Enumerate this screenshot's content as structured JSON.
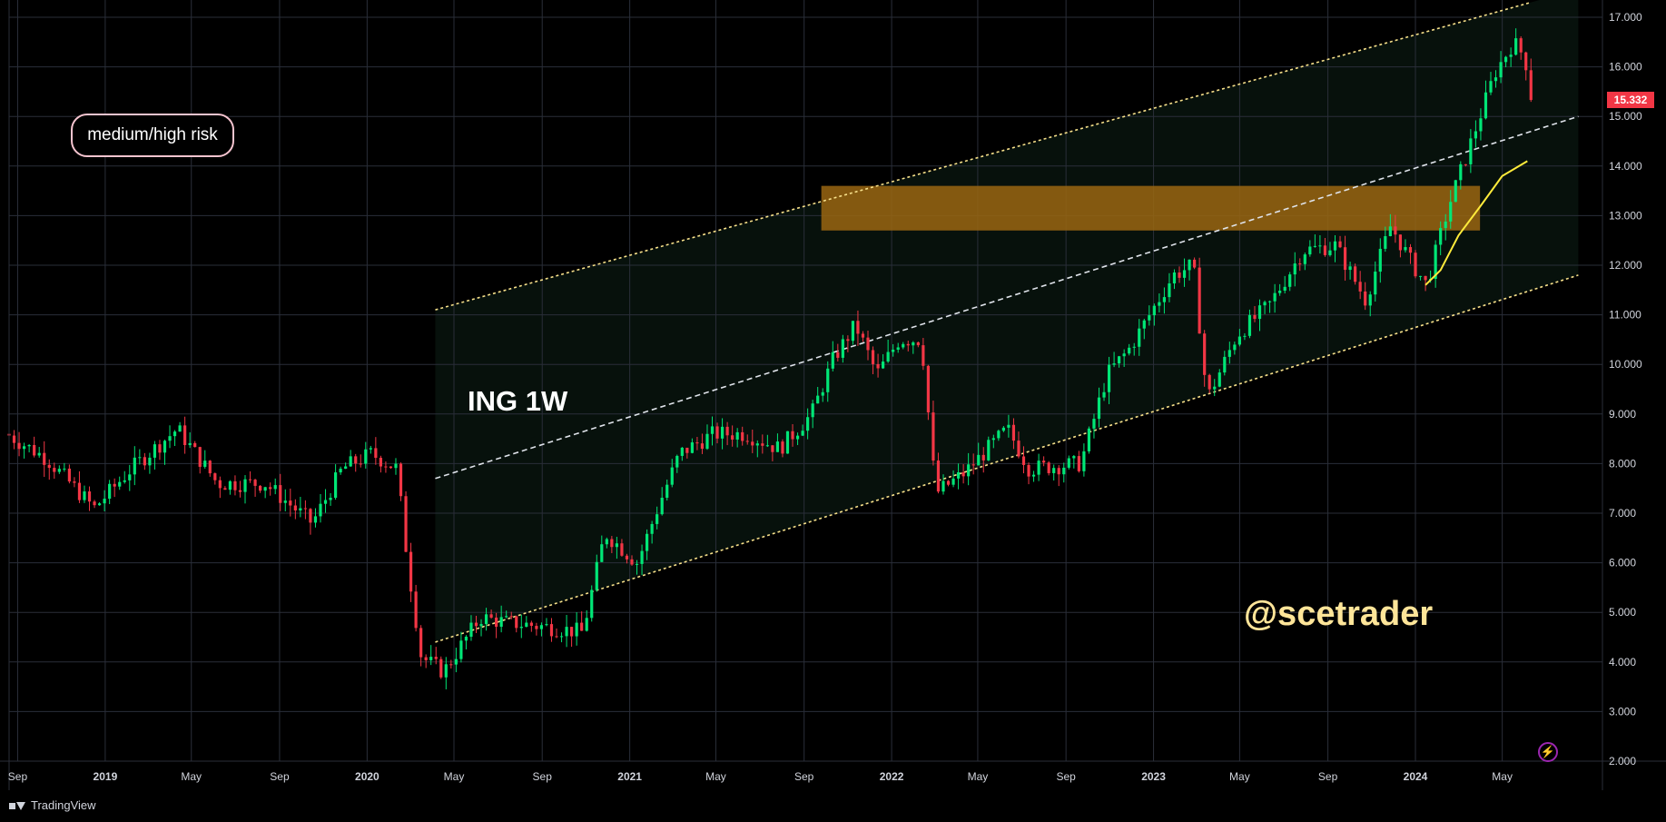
{
  "chart_data": {
    "type": "candlestick",
    "title": "ING 1W",
    "watermark": "@scetrader",
    "annotation": "medium/high risk",
    "last_price": 15.332,
    "ylim": [
      2.0,
      17.0
    ],
    "y_ticks": [
      "17.000",
      "16.000",
      "15.000",
      "14.000",
      "13.000",
      "12.000",
      "11.000",
      "10.000",
      "9.000",
      "8.000",
      "7.000",
      "6.000",
      "5.000",
      "4.000",
      "3.000",
      "2.000"
    ],
    "x_ticks": [
      {
        "label": "Sep",
        "date": "2018-09-01",
        "bold": false
      },
      {
        "label": "2019",
        "date": "2019-01-01",
        "bold": true
      },
      {
        "label": "May",
        "date": "2019-05-01",
        "bold": false
      },
      {
        "label": "Sep",
        "date": "2019-09-01",
        "bold": false
      },
      {
        "label": "2020",
        "date": "2020-01-01",
        "bold": true
      },
      {
        "label": "May",
        "date": "2020-05-01",
        "bold": false
      },
      {
        "label": "Sep",
        "date": "2020-09-01",
        "bold": false
      },
      {
        "label": "2021",
        "date": "2021-01-01",
        "bold": true
      },
      {
        "label": "May",
        "date": "2021-05-01",
        "bold": false
      },
      {
        "label": "Sep",
        "date": "2021-09-01",
        "bold": false
      },
      {
        "label": "2022",
        "date": "2022-01-01",
        "bold": true
      },
      {
        "label": "May",
        "date": "2022-05-01",
        "bold": false
      },
      {
        "label": "Sep",
        "date": "2022-09-01",
        "bold": false
      },
      {
        "label": "2023",
        "date": "2023-01-01",
        "bold": true
      },
      {
        "label": "May",
        "date": "2023-05-01",
        "bold": false
      },
      {
        "label": "Sep",
        "date": "2023-09-01",
        "bold": false
      },
      {
        "label": "2024",
        "date": "2024-01-01",
        "bold": true
      },
      {
        "label": "May",
        "date": "2024-05-01",
        "bold": false
      }
    ],
    "price_anchors": [
      [
        "2018-08-20",
        8.6
      ],
      [
        "2018-10-15",
        8.1
      ],
      [
        "2018-12-20",
        7.1
      ],
      [
        "2019-02-10",
        7.9
      ],
      [
        "2019-04-15",
        8.7
      ],
      [
        "2019-06-10",
        7.6
      ],
      [
        "2019-08-15",
        7.6
      ],
      [
        "2019-10-20",
        6.8
      ],
      [
        "2019-12-01",
        7.9
      ],
      [
        "2020-01-10",
        8.2
      ],
      [
        "2020-02-15",
        7.9
      ],
      [
        "2020-03-01",
        6.0
      ],
      [
        "2020-03-20",
        4.1
      ],
      [
        "2020-04-20",
        3.8
      ],
      [
        "2020-06-10",
        4.9
      ],
      [
        "2020-07-15",
        4.8
      ],
      [
        "2020-09-15",
        4.7
      ],
      [
        "2020-10-31",
        4.6
      ],
      [
        "2020-12-01",
        6.6
      ],
      [
        "2021-01-15",
        6.0
      ],
      [
        "2021-02-15",
        7.2
      ],
      [
        "2021-03-15",
        8.2
      ],
      [
        "2021-05-01",
        8.6
      ],
      [
        "2021-06-15",
        8.6
      ],
      [
        "2021-08-01",
        8.3
      ],
      [
        "2021-09-15",
        9.0
      ],
      [
        "2021-10-15",
        10.1
      ],
      [
        "2021-11-15",
        10.8
      ],
      [
        "2021-12-15",
        9.8
      ],
      [
        "2022-01-15",
        10.5
      ],
      [
        "2022-02-15",
        10.5
      ],
      [
        "2022-03-07",
        7.4
      ],
      [
        "2022-04-15",
        7.8
      ],
      [
        "2022-06-15",
        8.7
      ],
      [
        "2022-07-15",
        7.9
      ],
      [
        "2022-09-25",
        8.0
      ],
      [
        "2022-11-01",
        9.8
      ],
      [
        "2022-12-01",
        10.3
      ],
      [
        "2023-02-01",
        11.8
      ],
      [
        "2023-03-01",
        12.0
      ],
      [
        "2023-03-20",
        9.3
      ],
      [
        "2023-05-01",
        10.6
      ],
      [
        "2023-06-15",
        11.2
      ],
      [
        "2023-08-01",
        12.3
      ],
      [
        "2023-09-15",
        12.4
      ],
      [
        "2023-10-27",
        11.3
      ],
      [
        "2023-12-01",
        12.8
      ],
      [
        "2024-01-01",
        12.0
      ],
      [
        "2024-01-20",
        11.6
      ],
      [
        "2024-02-20",
        13.2
      ],
      [
        "2024-03-20",
        14.4
      ],
      [
        "2024-04-25",
        15.9
      ],
      [
        "2024-05-20",
        16.5
      ],
      [
        "2024-06-05",
        16.2
      ],
      [
        "2024-06-15",
        15.332
      ]
    ],
    "trendlines": [
      {
        "name": "channel-upper",
        "from": [
          "2020-04-05",
          11.1
        ],
        "to": [
          "2024-06-10",
          17.3
        ],
        "style": "dotted",
        "color": "#f7e08a"
      },
      {
        "name": "channel-middle",
        "from": [
          "2020-04-05",
          7.7
        ],
        "to": [
          "2024-08-15",
          15.0
        ],
        "style": "dashed",
        "color": "#dfe3ea"
      },
      {
        "name": "channel-lower",
        "from": [
          "2020-04-05",
          4.4
        ],
        "to": [
          "2024-08-15",
          11.8
        ],
        "style": "dotted",
        "color": "#f7e08a"
      }
    ],
    "resistance_zone": {
      "x_start": "2021-09-25",
      "x_end": "2024-03-31",
      "y_low": 12.7,
      "y_high": 13.6,
      "color": "#9a6612"
    },
    "moving_average": {
      "color": "#ffeb3b",
      "points": [
        [
          "2024-01-15",
          11.6
        ],
        [
          "2024-02-05",
          11.9
        ],
        [
          "2024-03-01",
          12.6
        ],
        [
          "2024-04-01",
          13.2
        ],
        [
          "2024-05-01",
          13.8
        ],
        [
          "2024-06-05",
          14.1
        ]
      ]
    },
    "colors": {
      "up": "#00e676",
      "down": "#f23645",
      "grid": "#2a2e39",
      "axis_text": "#d1d4dc",
      "background": "#000000"
    }
  },
  "ui": {
    "brand": "TradingView",
    "risk_label": "medium/high risk",
    "title": "ING 1W",
    "watermark": "@scetrader",
    "price_tag": "15.332"
  }
}
